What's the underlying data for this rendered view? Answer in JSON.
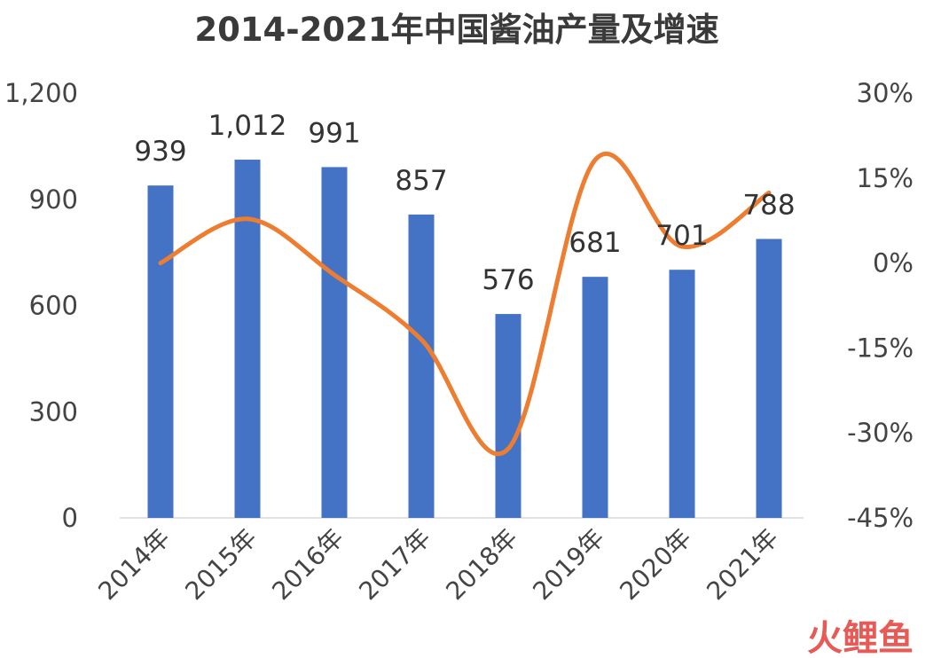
{
  "chart_data": {
    "type": "bar",
    "title": "2014-2021年中国酱油产量及增速",
    "categories": [
      "2014年",
      "2015年",
      "2016年",
      "2017年",
      "2018年",
      "2019年",
      "2020年",
      "2021年"
    ],
    "series": [
      {
        "type": "bar",
        "values": [
          939,
          1012,
          991,
          857,
          576,
          681,
          701,
          788
        ],
        "data_labels": [
          "939",
          "1,012",
          "991",
          "857",
          "576",
          "681",
          "701",
          "788"
        ],
        "color": "#4472c4",
        "axis": "left"
      },
      {
        "type": "line",
        "smooth": true,
        "values": [
          0.0,
          7.8,
          -2.1,
          -13.5,
          -32.8,
          18.2,
          2.9,
          12.4
        ],
        "color": "#ed7d31",
        "axis": "right"
      }
    ],
    "y_left": {
      "ylim": [
        0,
        1200
      ],
      "ticks": [
        0,
        300,
        600,
        900,
        1200
      ],
      "tick_labels": [
        "0",
        "300",
        "600",
        "900",
        "1,200"
      ]
    },
    "y_right": {
      "ylim": [
        -45,
        30
      ],
      "ticks": [
        -45,
        -30,
        -15,
        0,
        15,
        30
      ],
      "tick_labels": [
        "-45%",
        "-30%",
        "-15%",
        "0%",
        "15%",
        "30%"
      ]
    },
    "grid": false,
    "legend": "none"
  },
  "watermark": {
    "text": "火鲤鱼"
  }
}
